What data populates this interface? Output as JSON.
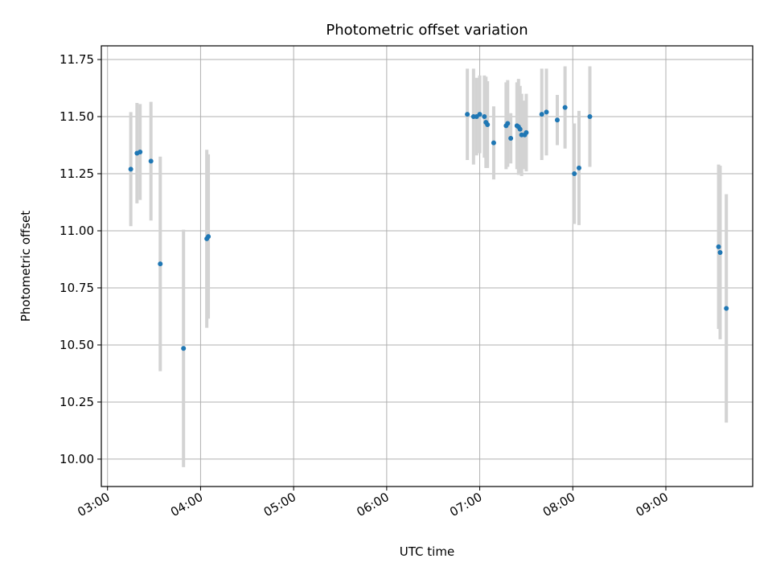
{
  "chart_data": {
    "type": "scatter",
    "title": "Photometric offset variation",
    "xlabel": "UTC time",
    "ylabel": "Photometric offset",
    "x_ticks": [
      "03:00",
      "04:00",
      "05:00",
      "06:00",
      "07:00",
      "08:00",
      "09:00"
    ],
    "y_ticks": [
      "10.00",
      "10.25",
      "10.50",
      "10.75",
      "11.00",
      "11.25",
      "11.50",
      "11.75"
    ],
    "xlim": [
      "02:56",
      "09:56"
    ],
    "ylim": [
      9.88,
      11.81
    ],
    "grid": true,
    "colors": {
      "points": "#1f77b4",
      "errorbars": "#d3d3d3",
      "grid": "#b0b0b0"
    },
    "series": [
      {
        "points": [
          {
            "x": "03:15",
            "y": 11.27,
            "err": 0.25
          },
          {
            "x": "03:19",
            "y": 11.34,
            "err": 0.22
          },
          {
            "x": "03:21",
            "y": 11.345,
            "err": 0.21
          },
          {
            "x": "03:28",
            "y": 11.305,
            "err": 0.26
          },
          {
            "x": "03:34",
            "y": 10.855,
            "err": 0.47
          },
          {
            "x": "03:49",
            "y": 10.485,
            "err": 0.52
          },
          {
            "x": "04:04",
            "y": 10.965,
            "err": 0.39
          },
          {
            "x": "04:05",
            "y": 10.975,
            "err": 0.36
          },
          {
            "x": "06:52",
            "y": 11.51,
            "err": 0.2
          },
          {
            "x": "06:56",
            "y": 11.5,
            "err": 0.21
          },
          {
            "x": "06:58",
            "y": 11.5,
            "err": 0.17
          },
          {
            "x": "07:00",
            "y": 11.51,
            "err": 0.17
          },
          {
            "x": "07:03",
            "y": 11.5,
            "err": 0.18
          },
          {
            "x": "07:04",
            "y": 11.475,
            "err": 0.2
          },
          {
            "x": "07:05",
            "y": 11.465,
            "err": 0.19
          },
          {
            "x": "07:09",
            "y": 11.385,
            "err": 0.16
          },
          {
            "x": "07:17",
            "y": 11.46,
            "err": 0.19
          },
          {
            "x": "07:18",
            "y": 11.47,
            "err": 0.19
          },
          {
            "x": "07:20",
            "y": 11.405,
            "err": 0.11
          },
          {
            "x": "07:24",
            "y": 11.46,
            "err": 0.19
          },
          {
            "x": "07:25",
            "y": 11.455,
            "err": 0.21
          },
          {
            "x": "07:26",
            "y": 11.445,
            "err": 0.19
          },
          {
            "x": "07:27",
            "y": 11.42,
            "err": 0.18
          },
          {
            "x": "07:29",
            "y": 11.42,
            "err": 0.15
          },
          {
            "x": "07:30",
            "y": 11.43,
            "err": 0.17
          },
          {
            "x": "07:40",
            "y": 11.51,
            "err": 0.2
          },
          {
            "x": "07:43",
            "y": 11.52,
            "err": 0.19
          },
          {
            "x": "07:50",
            "y": 11.485,
            "err": 0.11
          },
          {
            "x": "07:55",
            "y": 11.54,
            "err": 0.18
          },
          {
            "x": "08:01",
            "y": 11.25,
            "err": 0.22
          },
          {
            "x": "08:04",
            "y": 11.275,
            "err": 0.25
          },
          {
            "x": "08:11",
            "y": 11.5,
            "err": 0.22
          },
          {
            "x": "09:34",
            "y": 10.93,
            "err": 0.36
          },
          {
            "x": "09:35",
            "y": 10.905,
            "err": 0.38
          },
          {
            "x": "09:39",
            "y": 10.66,
            "err": 0.5
          }
        ]
      }
    ]
  }
}
